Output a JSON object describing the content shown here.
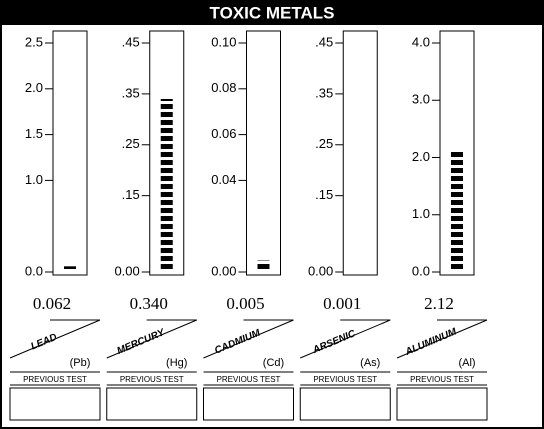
{
  "title": "TOXIC METALS",
  "chart_data": [
    {
      "type": "bar",
      "name": "LEAD",
      "symbol": "(Pb)",
      "values": [
        0.062
      ],
      "value_labels": [
        "0.062"
      ],
      "color": "#000000",
      "ylim": [
        0,
        2.5
      ],
      "yticks": [
        {
          "value": 0,
          "label": "0.0"
        },
        {
          "value": 1,
          "label": "1.0"
        },
        1.5,
        {
          "value": 2,
          "label": "2.0"
        },
        2.5
      ],
      "previous_label": "PREVIOUS TEST"
    },
    {
      "type": "bar",
      "name": "MERCURY",
      "symbol": "(Hg)",
      "values": [
        0.34
      ],
      "value_labels": [
        "0.340"
      ],
      "color": "#000000",
      "ylim": [
        0,
        0.45
      ],
      "yticks": [
        {
          "value": 0,
          "label": "0.00"
        },
        {
          "value": 0.15,
          "label": ".15"
        },
        {
          "value": 0.25,
          "label": ".25"
        },
        {
          "value": 0.35,
          "label": ".35"
        },
        {
          "value": 0.45,
          "label": ".45"
        }
      ],
      "previous_label": "PREVIOUS TEST"
    },
    {
      "type": "bar",
      "name": "CADMIUM",
      "symbol": "(Cd)",
      "values": [
        0.005
      ],
      "value_labels": [
        "0.005"
      ],
      "color": "#000000",
      "ylim": [
        0,
        0.1
      ],
      "yticks": [
        {
          "value": 0,
          "label": "0.00"
        },
        0.04,
        0.06,
        0.08,
        {
          "value": 0.1,
          "label": "0.10"
        }
      ],
      "previous_label": "PREVIOUS TEST"
    },
    {
      "type": "bar",
      "name": "ARSENIC",
      "symbol": "(As)",
      "values": [
        0.001
      ],
      "value_labels": [
        "0.001"
      ],
      "color": "#000000",
      "ylim": [
        0,
        0.45
      ],
      "yticks": [
        {
          "value": 0,
          "label": "0.00"
        },
        {
          "value": 0.15,
          "label": ".15"
        },
        {
          "value": 0.25,
          "label": ".25"
        },
        {
          "value": 0.35,
          "label": ".35"
        },
        {
          "value": 0.45,
          "label": ".45"
        }
      ],
      "previous_label": "PREVIOUS TEST"
    },
    {
      "type": "bar",
      "name": "ALUMINUM",
      "symbol": "(Al)",
      "values": [
        2.12
      ],
      "value_labels": [
        "2.12"
      ],
      "color": "#000000",
      "ylim": [
        0,
        4
      ],
      "yticks": [
        {
          "value": 0,
          "label": "0.0"
        },
        {
          "value": 1,
          "label": "1.0"
        },
        {
          "value": 2,
          "label": "2.0"
        },
        {
          "value": 3,
          "label": "3.0"
        },
        {
          "value": 4,
          "label": "4.0"
        }
      ],
      "previous_label": "PREVIOUS TEST"
    }
  ]
}
